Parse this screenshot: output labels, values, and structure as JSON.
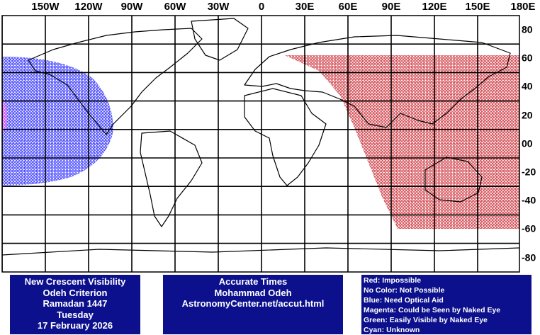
{
  "map": {
    "longitude_labels": [
      "150W",
      "120W",
      "90W",
      "60W",
      "30W",
      "0",
      "30E",
      "60E",
      "90E",
      "120E",
      "150E",
      "180E"
    ],
    "latitude_labels": [
      "80",
      "60",
      "40",
      "20",
      "00",
      "-20",
      "-40",
      "-60",
      "-80"
    ],
    "colors": {
      "impossible": "#c8202a",
      "optical_aid": "#1a1aff",
      "naked_eye_possible": "#ff40ff",
      "grid": "#000000",
      "panel": "#0c108c"
    },
    "zones": [
      {
        "label": "Red: Impossible",
        "color": "#c8202a"
      },
      {
        "label": "Blue: Need Optical Aid",
        "color": "#1a1aff"
      },
      {
        "label": "Magenta: Could be Seen by Naked Eye",
        "color": "#ff40ff"
      }
    ]
  },
  "panel_left": {
    "lines": [
      "New Crescent Visibility",
      "Odeh Criterion",
      "Ramadan 1447",
      "Tuesday",
      "17 February 2026"
    ]
  },
  "panel_middle": {
    "lines": [
      "Accurate Times",
      "Mohammad Odeh",
      "AstronomyCenter.net/accut.html"
    ]
  },
  "panel_right": {
    "lines": [
      "Red: Impossible",
      "No Color: Not Possible",
      "Blue: Need Optical Aid",
      "Magenta: Could be Seen by Naked Eye",
      "Green: Easily Visible by Naked Eye",
      "Cyan: Unknown"
    ]
  }
}
